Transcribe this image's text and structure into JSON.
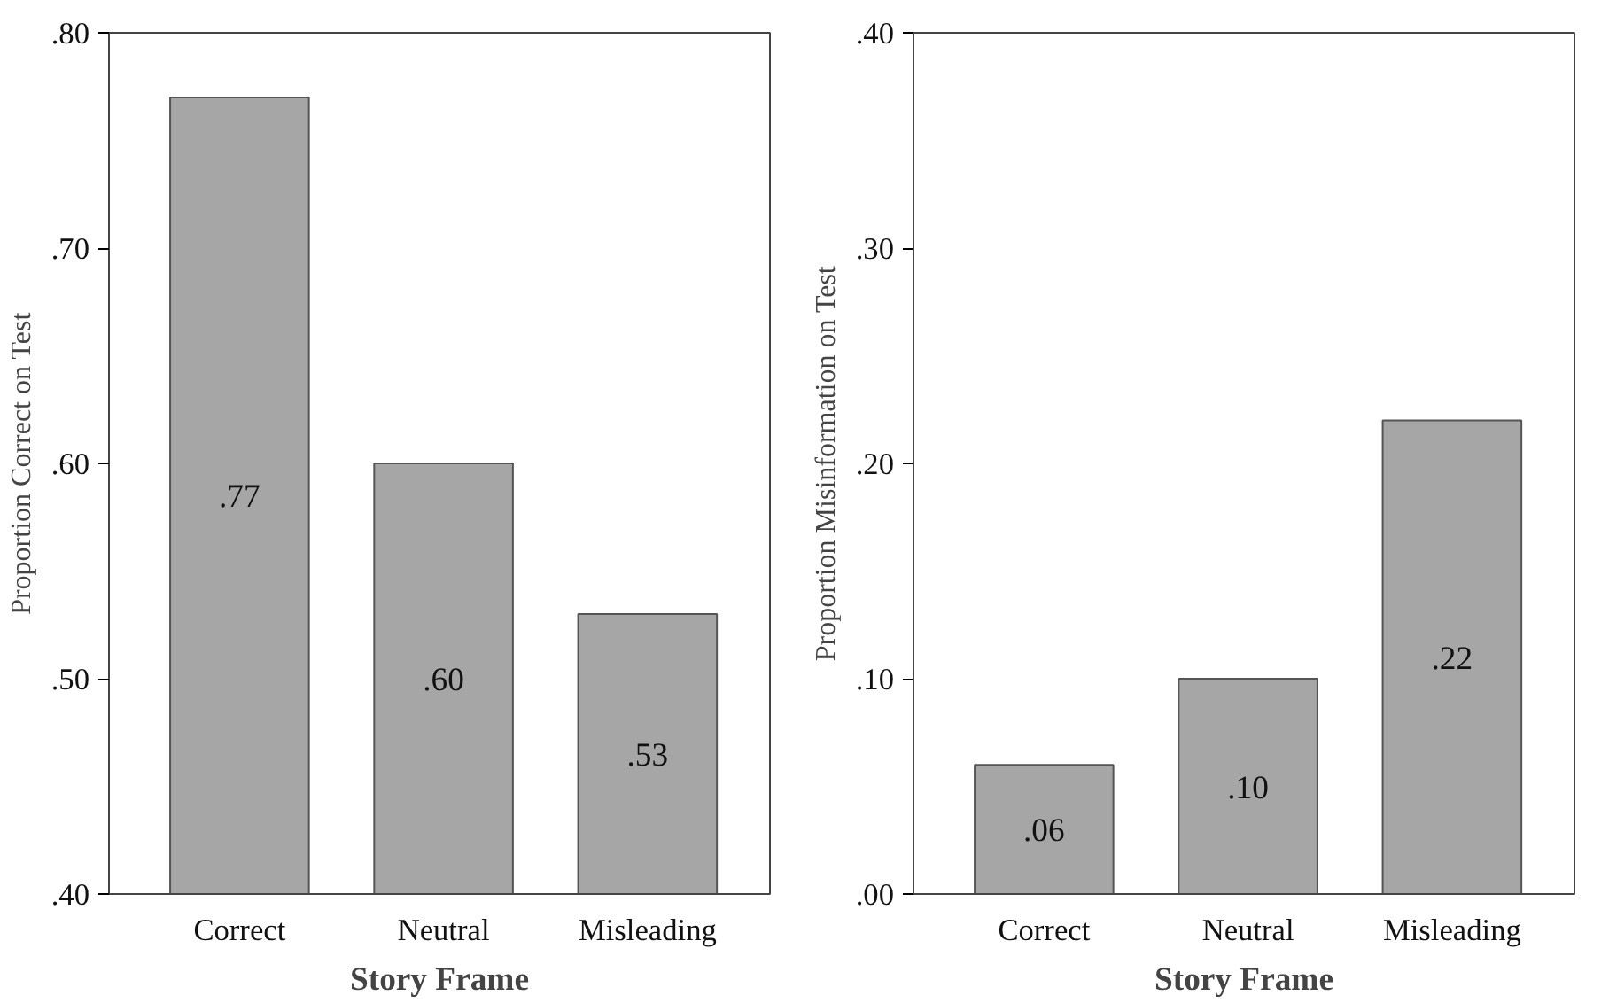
{
  "chart_data": [
    {
      "type": "bar",
      "xlabel": "Story Frame",
      "ylabel": "Proportion Correct on Test",
      "categories": [
        "Correct",
        "Neutral",
        "Misleading"
      ],
      "values": [
        0.77,
        0.6,
        0.53
      ],
      "value_labels": [
        ".77",
        ".60",
        ".53"
      ],
      "color": "#a6a6a6",
      "ylim": [
        0.4,
        0.8
      ],
      "yticks": [
        {
          "value": 0.4,
          "label": ".40"
        },
        {
          "value": 0.5,
          "label": ".50"
        },
        {
          "value": 0.6,
          "label": ".60"
        },
        {
          "value": 0.7,
          "label": ".70"
        },
        {
          "value": 0.8,
          "label": ".80"
        }
      ],
      "grid": false,
      "legend": false
    },
    {
      "type": "bar",
      "xlabel": "Story Frame",
      "ylabel": "Proportion Misinformation on Test",
      "categories": [
        "Correct",
        "Neutral",
        "Misleading"
      ],
      "values": [
        0.06,
        0.1,
        0.22
      ],
      "value_labels": [
        ".06",
        ".10",
        ".22"
      ],
      "color": "#a6a6a6",
      "ylim": [
        0.0,
        0.4
      ],
      "yticks": [
        {
          "value": 0.0,
          "label": ".00"
        },
        {
          "value": 0.1,
          "label": ".10"
        },
        {
          "value": 0.2,
          "label": ".20"
        },
        {
          "value": 0.3,
          "label": ".30"
        },
        {
          "value": 0.4,
          "label": ".40"
        }
      ],
      "grid": false,
      "legend": false
    }
  ]
}
